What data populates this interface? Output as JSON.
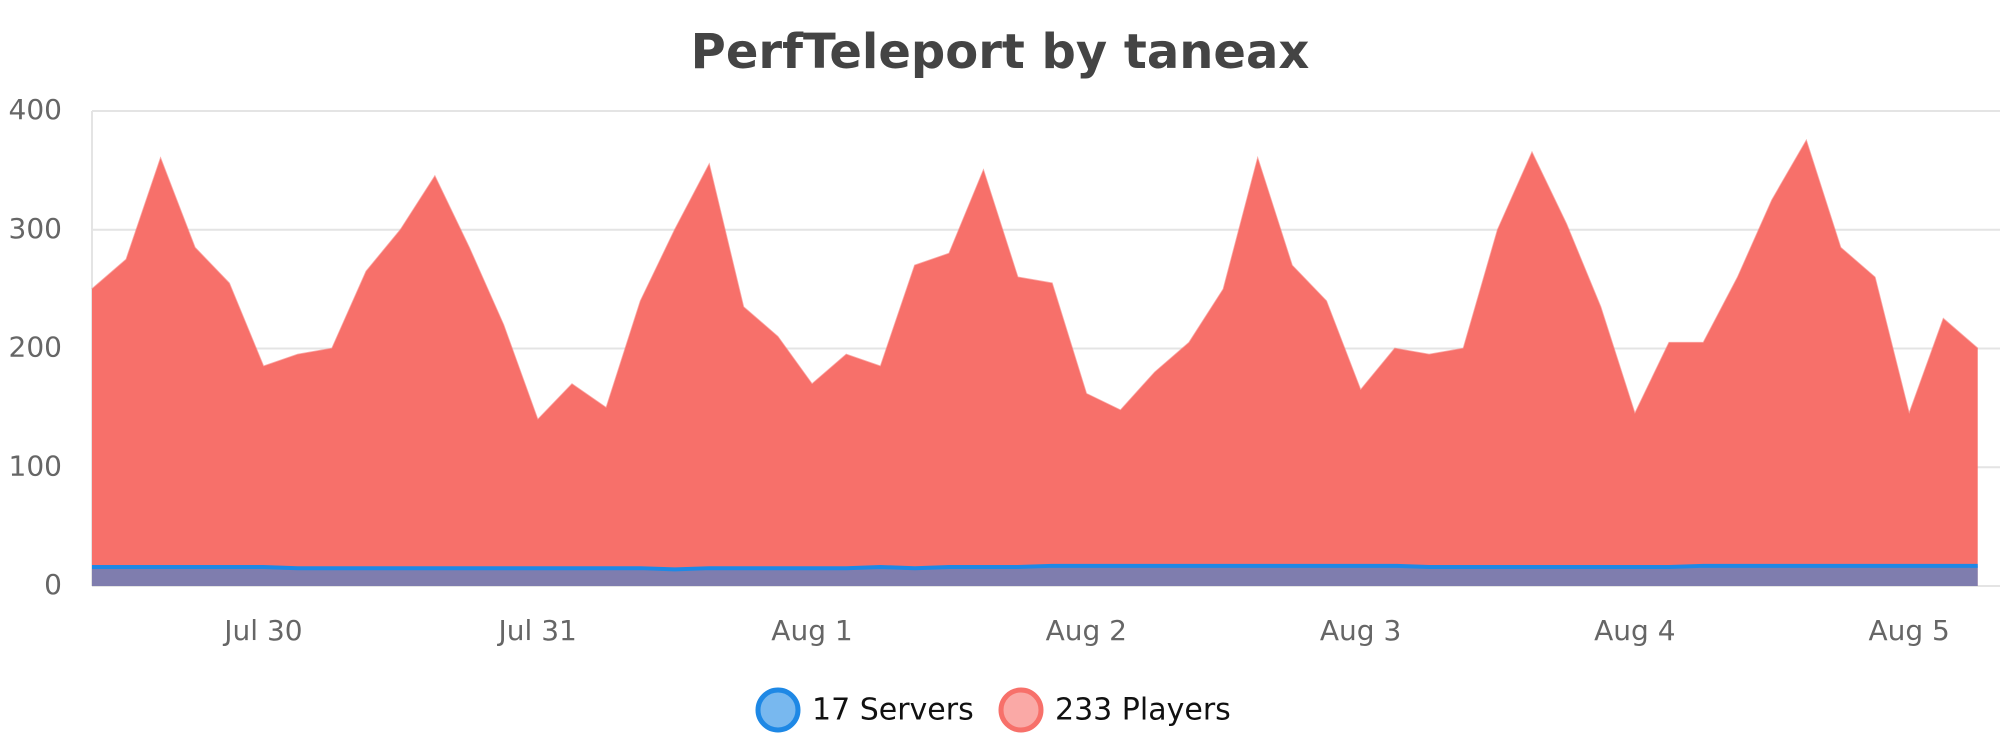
{
  "chart_data": {
    "type": "area",
    "title": "PerfTeleport by taneax",
    "categories": [
      null,
      null,
      null,
      null,
      null,
      "Jul 30",
      null,
      null,
      null,
      null,
      null,
      null,
      null,
      "Jul 31",
      null,
      null,
      null,
      null,
      null,
      null,
      null,
      "Aug 1",
      null,
      null,
      null,
      null,
      null,
      null,
      null,
      "Aug 2",
      null,
      null,
      null,
      null,
      null,
      null,
      null,
      "Aug 3",
      null,
      null,
      null,
      null,
      null,
      null,
      null,
      "Aug 4",
      null,
      null,
      null,
      null,
      null,
      null,
      null,
      "Aug 5",
      null,
      null
    ],
    "series": [
      {
        "name": "233 Players",
        "color": "#f7706a",
        "values": [
          250,
          275,
          360,
          285,
          255,
          185,
          195,
          200,
          265,
          300,
          345,
          285,
          220,
          140,
          170,
          150,
          240,
          300,
          355,
          235,
          210,
          170,
          195,
          185,
          270,
          280,
          350,
          260,
          255,
          162,
          148,
          180,
          205,
          250,
          360,
          270,
          240,
          165,
          200,
          195,
          200,
          300,
          365,
          305,
          235,
          145,
          205,
          205,
          260,
          325,
          375,
          285,
          260,
          145,
          225,
          200
        ]
      },
      {
        "name": "17 Servers",
        "color": "#1e88e5",
        "values": [
          16,
          16,
          16,
          16,
          16,
          16,
          15,
          15,
          15,
          15,
          15,
          15,
          15,
          15,
          15,
          15,
          15,
          14,
          15,
          15,
          15,
          15,
          15,
          16,
          15,
          16,
          16,
          16,
          17,
          17,
          17,
          17,
          17,
          17,
          17,
          17,
          17,
          17,
          17,
          16,
          16,
          16,
          16,
          16,
          16,
          16,
          16,
          17,
          17,
          17,
          17,
          17,
          17,
          17,
          17,
          17
        ]
      }
    ],
    "legend_order": [
      1,
      0
    ],
    "ylim": [
      0,
      400
    ],
    "yticks": [
      0,
      100,
      200,
      300,
      400
    ],
    "grid": true
  }
}
